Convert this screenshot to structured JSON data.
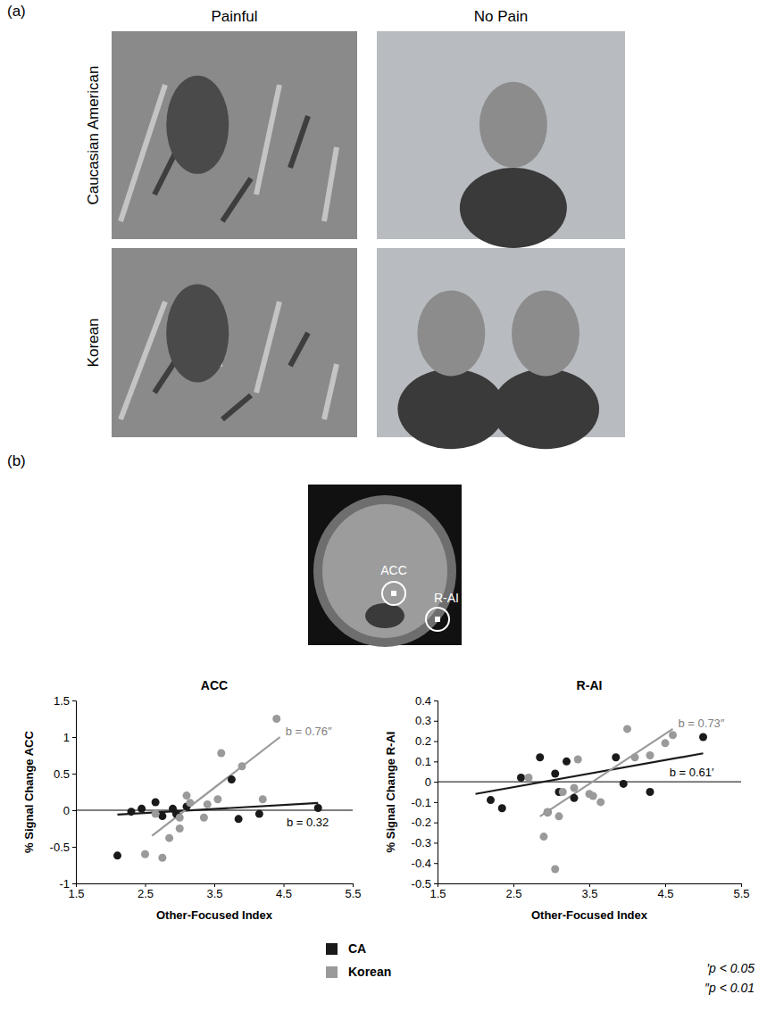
{
  "panel_a": {
    "label": "(a)",
    "columns": [
      "Painful",
      "No Pain"
    ],
    "rows": [
      "Caucasian American",
      "Korean"
    ]
  },
  "panel_b": {
    "label": "(b)",
    "regions": [
      "ACC",
      "R-AI"
    ]
  },
  "chart_data": [
    {
      "type": "scatter",
      "title": "ACC",
      "x_label": "Other-Focused Index",
      "y_label": "% Signal Change ACC",
      "xlim": [
        1.5,
        5.5
      ],
      "xticks": [
        1.5,
        2.5,
        3.5,
        4.5,
        5.5
      ],
      "ylim": [
        -1,
        1.5
      ],
      "yticks": [
        -1,
        -0.5,
        0,
        0.5,
        1,
        1.5
      ],
      "legend": "bottom",
      "series": [
        {
          "name": "CA",
          "color": "#1a1a1a",
          "x": [
            2.1,
            2.3,
            2.45,
            2.65,
            2.75,
            2.9,
            2.95,
            3.1,
            3.75,
            3.85,
            4.15,
            5.0
          ],
          "values": [
            -0.62,
            -0.02,
            0.02,
            0.11,
            -0.08,
            0.02,
            -0.05,
            0.05,
            0.42,
            -0.12,
            -0.05,
            0.03
          ],
          "fit": {
            "x": [
              2.1,
              5.0
            ],
            "values": [
              -0.06,
              0.1
            ],
            "label": "b = 0.32"
          }
        },
        {
          "name": "Korean",
          "color": "#9a9a9a",
          "x": [
            2.5,
            2.65,
            2.75,
            2.85,
            3.0,
            3.0,
            3.1,
            3.15,
            3.35,
            3.4,
            3.55,
            3.6,
            3.9,
            4.2,
            4.4
          ],
          "values": [
            -0.6,
            -0.05,
            -0.65,
            -0.38,
            -0.25,
            -0.1,
            0.2,
            0.1,
            -0.1,
            0.08,
            0.15,
            0.78,
            0.6,
            0.15,
            1.25
          ],
          "fit": {
            "x": [
              2.6,
              4.45
            ],
            "values": [
              -0.35,
              1.0
            ],
            "label": "b = 0.76″"
          }
        }
      ]
    },
    {
      "type": "scatter",
      "title": "R-AI",
      "x_label": "Other-Focused Index",
      "y_label": "% Signal Change R-AI",
      "xlim": [
        1.5,
        5.5
      ],
      "xticks": [
        1.5,
        2.5,
        3.5,
        4.5,
        5.5
      ],
      "ylim": [
        -0.5,
        0.4
      ],
      "yticks": [
        -0.5,
        -0.4,
        -0.3,
        -0.2,
        -0.1,
        0,
        0.1,
        0.2,
        0.3,
        0.4
      ],
      "series": [
        {
          "color": "#1a1a1a",
          "x": [
            2.2,
            2.35,
            2.6,
            2.85,
            2.95,
            3.05,
            3.1,
            3.2,
            3.3,
            3.85,
            3.95,
            4.3,
            5.0
          ],
          "values": [
            -0.09,
            -0.13,
            0.02,
            0.12,
            -0.15,
            0.04,
            -0.05,
            0.1,
            -0.08,
            0.12,
            -0.01,
            -0.05,
            0.22
          ],
          "fit": {
            "x": [
              2.0,
              5.0
            ],
            "values": [
              -0.06,
              0.14
            ],
            "label": "b = 0.61′"
          }
        },
        {
          "color": "#9a9a9a",
          "x": [
            2.7,
            2.9,
            2.95,
            3.05,
            3.1,
            3.15,
            3.3,
            3.35,
            3.5,
            3.55,
            3.65,
            4.0,
            4.1,
            4.3,
            4.5,
            4.6
          ],
          "values": [
            0.02,
            -0.27,
            -0.15,
            -0.43,
            -0.17,
            -0.05,
            -0.03,
            0.11,
            -0.06,
            -0.07,
            -0.1,
            0.26,
            0.12,
            0.13,
            0.19,
            0.23
          ],
          "fit": {
            "x": [
              2.85,
              4.6
            ],
            "values": [
              -0.17,
              0.26
            ],
            "label": "b = 0.73″"
          }
        }
      ]
    }
  ],
  "notes": [
    "′p < 0.05",
    "″p < 0.01"
  ]
}
